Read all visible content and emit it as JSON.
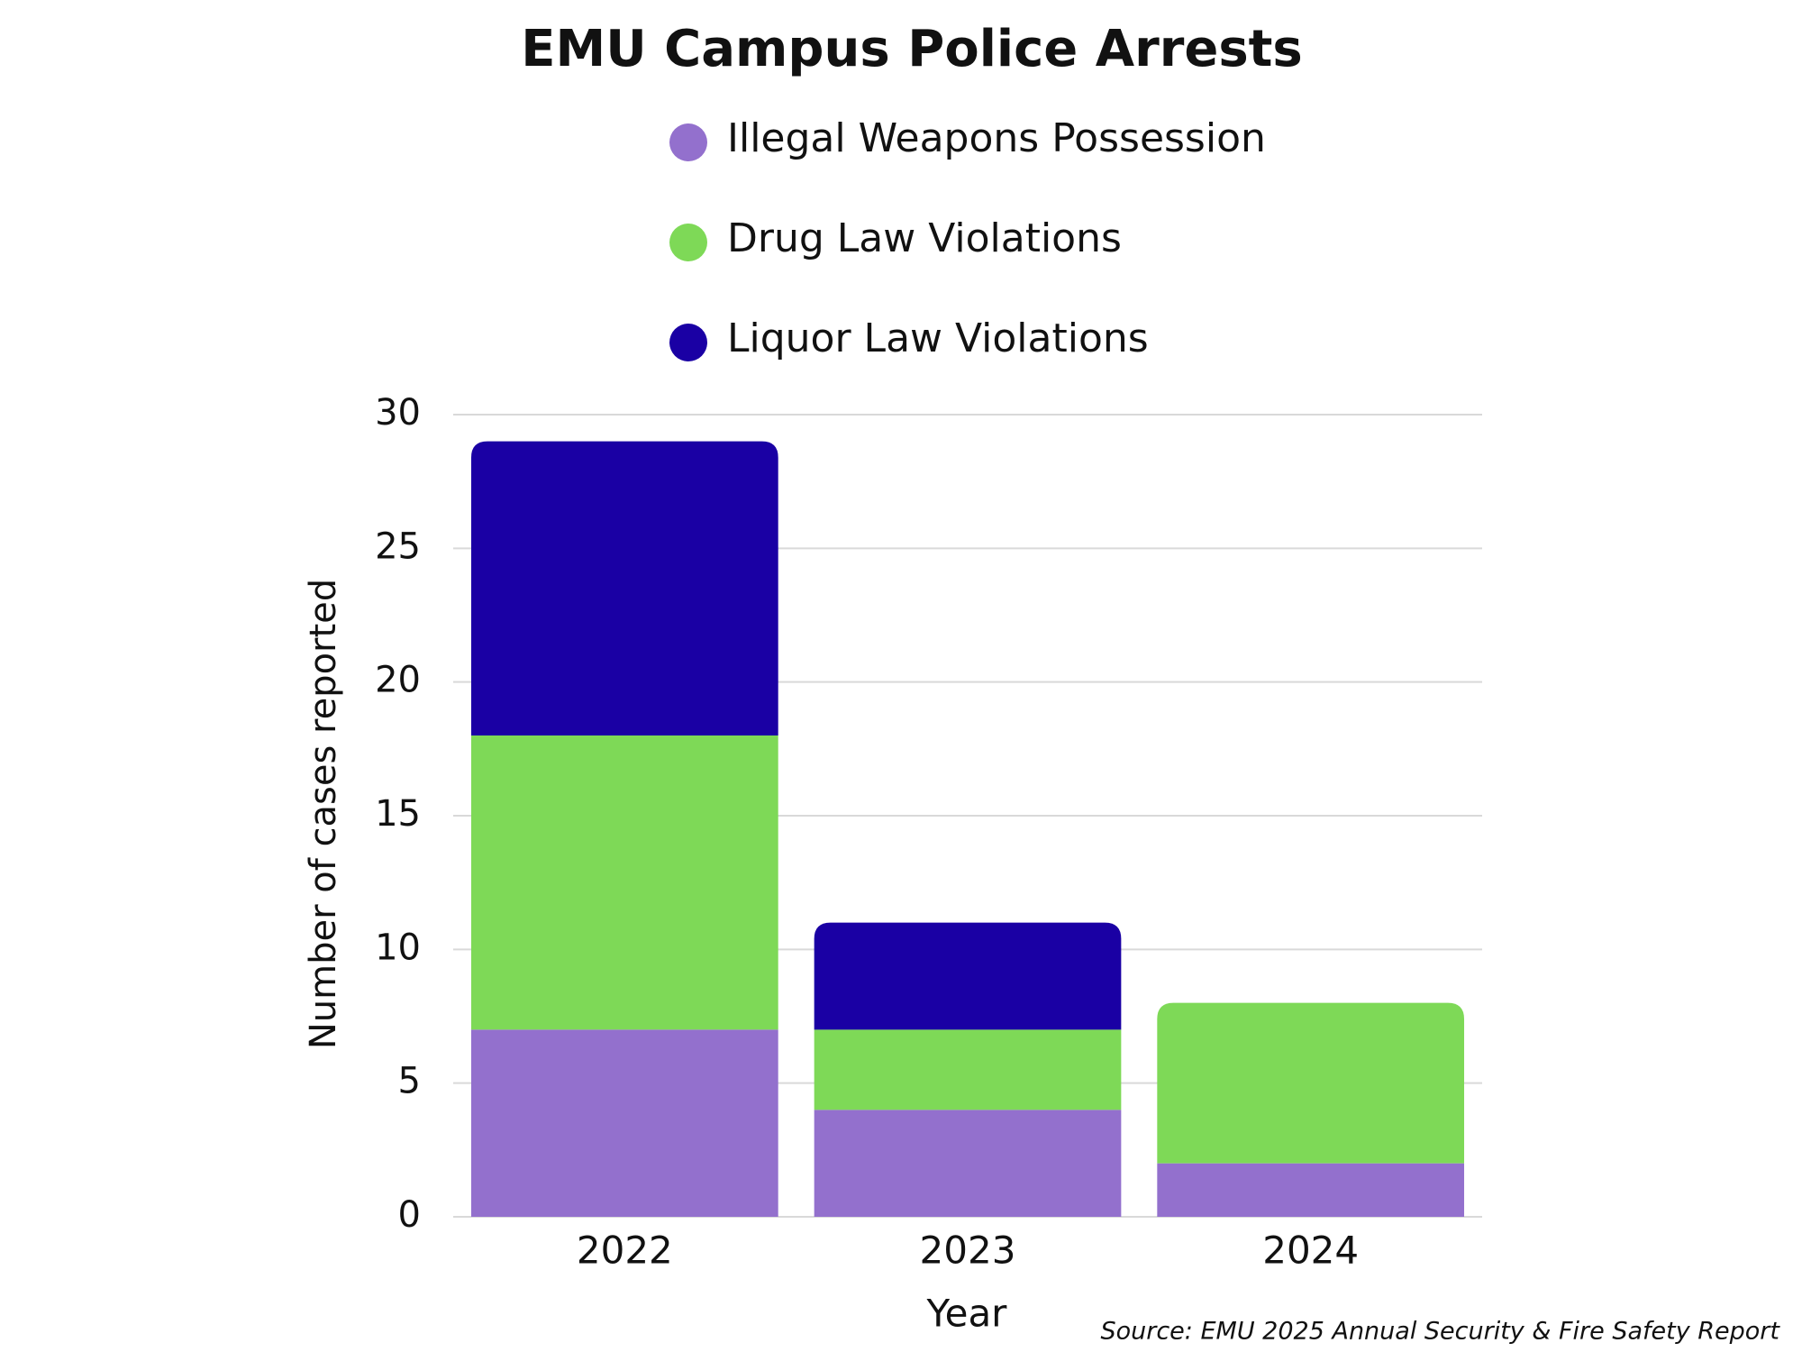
{
  "chart_data": {
    "type": "stacked_bar",
    "title": "EMU Campus Police Arrests",
    "categories": [
      "2022",
      "2023",
      "2024"
    ],
    "series": [
      {
        "name": "Illegal Weapons Possession",
        "color": "#9370cd",
        "values": [
          7,
          4,
          2
        ]
      },
      {
        "name": "Drug Law Violations",
        "color": "#7ed957",
        "values": [
          11,
          3,
          6
        ]
      },
      {
        "name": "Liquor Law Violations",
        "color": "#1a00a4",
        "values": [
          11,
          4,
          0
        ]
      }
    ],
    "ylim": [
      0,
      30
    ],
    "yticks": [
      0,
      5,
      10,
      15,
      20,
      25,
      30
    ],
    "grid": true,
    "y_label": "Number of cases reported",
    "x_label": "Year",
    "source": "Source: EMU 2025 Annual Security & Fire Safety Report"
  }
}
